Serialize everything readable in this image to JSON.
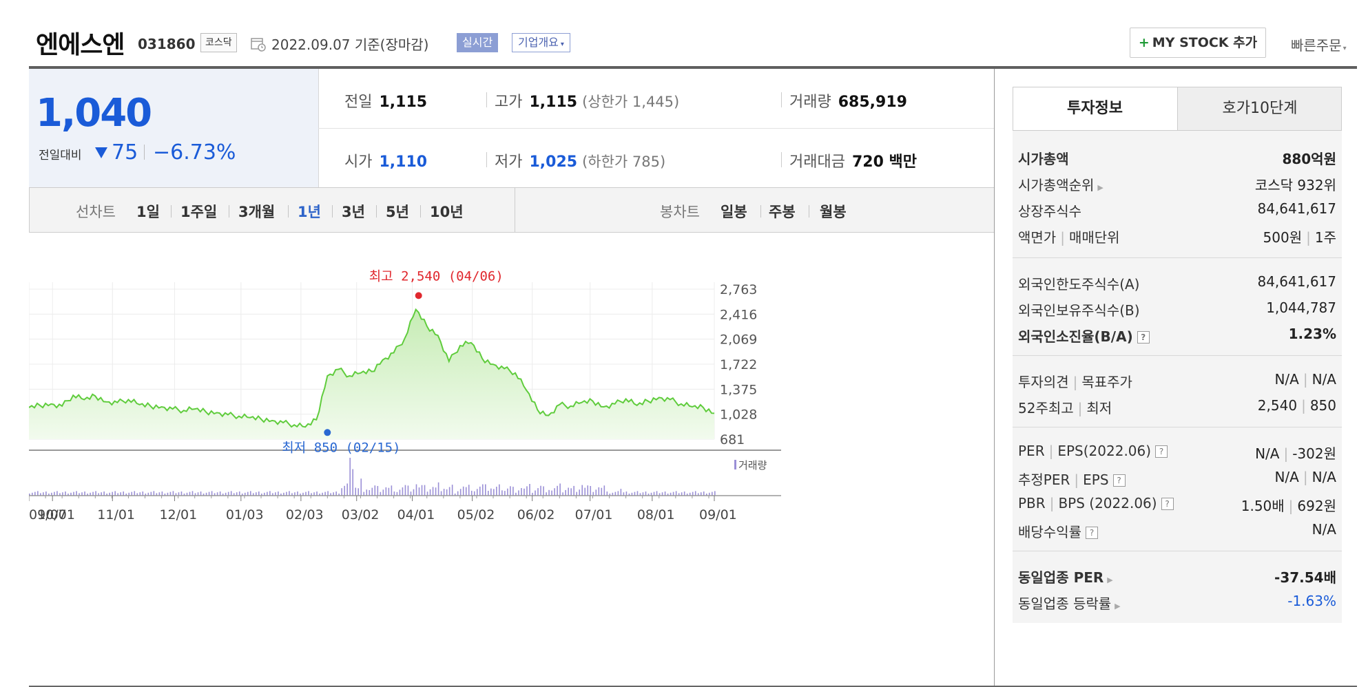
{
  "header": {
    "stock_name": "엔에스엔",
    "stock_code": "031860",
    "market": "코스닥",
    "date_text": "2022.09.07 기준(장마감)",
    "realtime_label": "실시간",
    "company_info_label": "기업개요",
    "my_stock_label": "MY STOCK 추가",
    "fast_order_label": "빠른주문"
  },
  "price": {
    "current": "1,040",
    "prev_label": "전일대비",
    "change": "75",
    "change_pct": "−6.73%",
    "down_color": "#1a5bd8"
  },
  "stats": {
    "prev_close_label": "전일",
    "prev_close": "1,115",
    "high_label": "고가",
    "high": "1,115",
    "upper_limit": "(상한가 1,445)",
    "volume_label": "거래량",
    "volume": "685,919",
    "open_label": "시가",
    "open": "1,110",
    "low_label": "저가",
    "low": "1,025",
    "lower_limit": "(하한가 785)",
    "value_label": "거래대금",
    "value": "720 백만"
  },
  "tabs": {
    "line_label": "선차트",
    "line_tabs": [
      "1일",
      "1주일",
      "3개월",
      "1년",
      "3년",
      "5년",
      "10년"
    ],
    "selected": "1년",
    "candle_label": "봉차트",
    "candle_tabs": [
      "일봉",
      "주봉",
      "월봉"
    ]
  },
  "chart_data": {
    "type": "area",
    "yticks": [
      "2,763",
      "2,416",
      "2,069",
      "1,722",
      "1,375",
      "1,028",
      "681"
    ],
    "ylim": [
      681,
      2763
    ],
    "xticks": [
      "09/07",
      "10/01",
      "11/01",
      "12/01",
      "01/03",
      "02/03",
      "03/02",
      "04/01",
      "05/02",
      "06/02",
      "07/01",
      "08/01",
      "09/01"
    ],
    "high_annotation": "최고 2,540 (04/06)",
    "low_annotation": "최저 850 (02/15)",
    "volume_legend": "거래량",
    "x_index": [
      0,
      4,
      8,
      12,
      16,
      20,
      24,
      28,
      32,
      36,
      40,
      44,
      48,
      52,
      56,
      60,
      64,
      68,
      72,
      76,
      80,
      84,
      88,
      92,
      96,
      100,
      104,
      108,
      112,
      116,
      120,
      124,
      128,
      132,
      136,
      140,
      144,
      148,
      152,
      156,
      160,
      164,
      168,
      172,
      176,
      180,
      184,
      188,
      192,
      196,
      200,
      204,
      208,
      212,
      216,
      220,
      224,
      228,
      232,
      236,
      240,
      244,
      248
    ],
    "values": [
      1120,
      1150,
      1170,
      1140,
      1290,
      1230,
      1280,
      1200,
      1190,
      1230,
      1160,
      1140,
      1130,
      1100,
      1080,
      1100,
      1060,
      1050,
      1020,
      1000,
      980,
      960,
      940,
      910,
      880,
      850,
      950,
      1560,
      1650,
      1560,
      1600,
      1620,
      1780,
      1880,
      2080,
      2480,
      2250,
      2120,
      1760,
      1980,
      2020,
      1800,
      1720,
      1660,
      1600,
      1360,
      1090,
      1010,
      1160,
      1140,
      1190,
      1210,
      1130,
      1170,
      1240,
      1150,
      1210,
      1260,
      1230,
      1170,
      1130,
      1120,
      1040
    ],
    "volume_peaks": [
      {
        "x": 116,
        "v": 100
      },
      {
        "x": 117,
        "v": 70
      },
      {
        "x": 120,
        "v": 45
      },
      {
        "x": 140,
        "v": 30
      },
      {
        "x": 143,
        "v": 28
      },
      {
        "x": 148,
        "v": 35
      },
      {
        "x": 165,
        "v": 30
      },
      {
        "x": 200,
        "v": 28
      },
      {
        "x": 214,
        "v": 18
      }
    ],
    "colors": {
      "line": "#5fcc3c",
      "fill_top": "#c6ecb4",
      "fill_bottom": "#eefae8",
      "volume": "#9a8fd6",
      "high": "#e0282e",
      "low": "#2a68d2"
    }
  },
  "invest": {
    "tab_active": "투자정보",
    "tab_other": "호가10단계",
    "rows": [
      {
        "l": "시가총액",
        "r": "880억원"
      },
      {
        "l": "시가총액순위",
        "r": "코스닥 932위"
      },
      {
        "l": "상장주식수",
        "r": "84,641,617"
      },
      {
        "l1": "액면가",
        "l2": "매매단위",
        "r1": "500원",
        "r2": "1주"
      },
      {
        "l": "외국인한도주식수(A)",
        "r": "84,641,617"
      },
      {
        "l": "외국인보유주식수(B)",
        "r": "1,044,787"
      },
      {
        "l": "외국인소진율(B/A)",
        "r": "1.23%"
      },
      {
        "l1": "투자의견",
        "l2": "목표주가",
        "r1": "N/A",
        "r2": "N/A"
      },
      {
        "l1": "52주최고",
        "l2": "최저",
        "r1": "2,540",
        "r2": "850"
      },
      {
        "l1": "PER",
        "l2": "EPS(2022.06)",
        "r1": "N/A",
        "r2": "-302원"
      },
      {
        "l1": "추정PER",
        "l2": "EPS",
        "r1": "N/A",
        "r2": "N/A"
      },
      {
        "l1": "PBR",
        "l2": "BPS (2022.06)",
        "r1": "1.50배",
        "r2": "692원"
      },
      {
        "l": "배당수익률",
        "r": "N/A"
      },
      {
        "l": "동일업종 PER",
        "r": "-37.54배"
      },
      {
        "l": "동일업종 등락률",
        "r": "-1.63%"
      }
    ]
  }
}
